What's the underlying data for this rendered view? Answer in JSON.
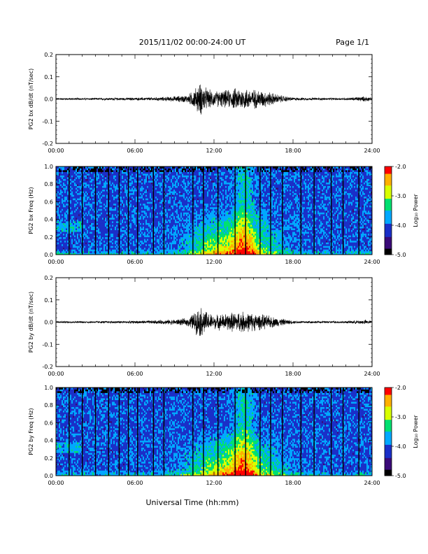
{
  "header": {
    "title": "2015/11/02  00:00-24:00 UT",
    "page": "Page 1/1"
  },
  "footer": {
    "xlabel": "Universal Time (hh:mm)"
  },
  "colorbar": {
    "colors": [
      "#000000",
      "#3a0a78",
      "#1a2fc8",
      "#00a8ff",
      "#00e070",
      "#d8ff00",
      "#ffb000",
      "#ff0000"
    ],
    "ticks": [
      "-2.0",
      "-3.0",
      "-4.0",
      "-5.0"
    ],
    "label": "Log₁₀ Power"
  },
  "chart_data": [
    {
      "type": "line",
      "ylabel": "PG2 bx dB/dt (nT/sec)",
      "ylim": [
        -0.2,
        0.2
      ],
      "yticks": [
        "0.2",
        "0.1",
        "0.0",
        "-0.1",
        "-0.2"
      ],
      "xlim": [
        "00:00",
        "24:00"
      ],
      "xticks": [
        "00:00",
        "06:00",
        "12:00",
        "18:00",
        "24:00"
      ],
      "envelope_hours": [
        0,
        2,
        4,
        6,
        8,
        9,
        10,
        10.5,
        11,
        11.5,
        12,
        13,
        14,
        15,
        16,
        17,
        18,
        20,
        22,
        23.5,
        24
      ],
      "envelope_amplitude": [
        0.005,
        0.005,
        0.006,
        0.007,
        0.01,
        0.014,
        0.02,
        0.05,
        0.085,
        0.05,
        0.04,
        0.045,
        0.06,
        0.05,
        0.04,
        0.02,
        0.008,
        0.006,
        0.006,
        0.014,
        0.006
      ]
    },
    {
      "type": "heatmap",
      "ylabel": "PG2 bx Freq (Hz)",
      "ylim": [
        0.0,
        1.0
      ],
      "yticks": [
        "1.0",
        "0.8",
        "0.6",
        "0.4",
        "0.2",
        "0.0"
      ],
      "xlim": [
        "00:00",
        "24:00"
      ],
      "xticks": [
        "00:00",
        "06:00",
        "12:00",
        "18:00",
        "24:00"
      ],
      "colorbar_range": [
        -5.0,
        -2.0
      ],
      "gap_lines_hours": [
        1,
        2,
        3,
        4,
        4.8,
        5.5,
        6.2,
        7.4,
        8.2,
        10.4,
        11.2,
        12.3,
        13.6,
        14.4,
        15.5,
        16.3,
        17.2,
        18.6,
        19.6,
        20.9,
        21.8,
        23.0
      ]
    },
    {
      "type": "line",
      "ylabel": "PG2 by dB/dt (nT/sec)",
      "ylim": [
        -0.2,
        0.2
      ],
      "yticks": [
        "0.2",
        "0.1",
        "0.0",
        "-0.1",
        "-0.2"
      ],
      "xlim": [
        "00:00",
        "24:00"
      ],
      "xticks": [
        "00:00",
        "06:00",
        "12:00",
        "18:00",
        "24:00"
      ],
      "envelope_hours": [
        0,
        2,
        4,
        6,
        8,
        9,
        10,
        10.5,
        11,
        11.5,
        12,
        13,
        14,
        15,
        16,
        17,
        18,
        20,
        22,
        23.5,
        24
      ],
      "envelope_amplitude": [
        0.005,
        0.005,
        0.006,
        0.007,
        0.01,
        0.014,
        0.02,
        0.05,
        0.08,
        0.05,
        0.035,
        0.045,
        0.055,
        0.045,
        0.035,
        0.02,
        0.008,
        0.006,
        0.006,
        0.012,
        0.006
      ]
    },
    {
      "type": "heatmap",
      "ylabel": "PG2 by Freq (Hz)",
      "ylim": [
        0.0,
        1.0
      ],
      "yticks": [
        "1.0",
        "0.8",
        "0.6",
        "0.4",
        "0.2",
        "0.0"
      ],
      "xlim": [
        "00:00",
        "24:00"
      ],
      "xticks": [
        "00:00",
        "06:00",
        "12:00",
        "18:00",
        "24:00"
      ],
      "colorbar_range": [
        -5.0,
        -2.0
      ],
      "gap_lines_hours": [
        1,
        2,
        3,
        4,
        4.8,
        5.5,
        6.2,
        7.4,
        8.2,
        10.4,
        11.2,
        12.3,
        13.6,
        14.4,
        15.5,
        16.3,
        17.2,
        18.6,
        19.6,
        20.9,
        21.8,
        23.0
      ]
    }
  ]
}
